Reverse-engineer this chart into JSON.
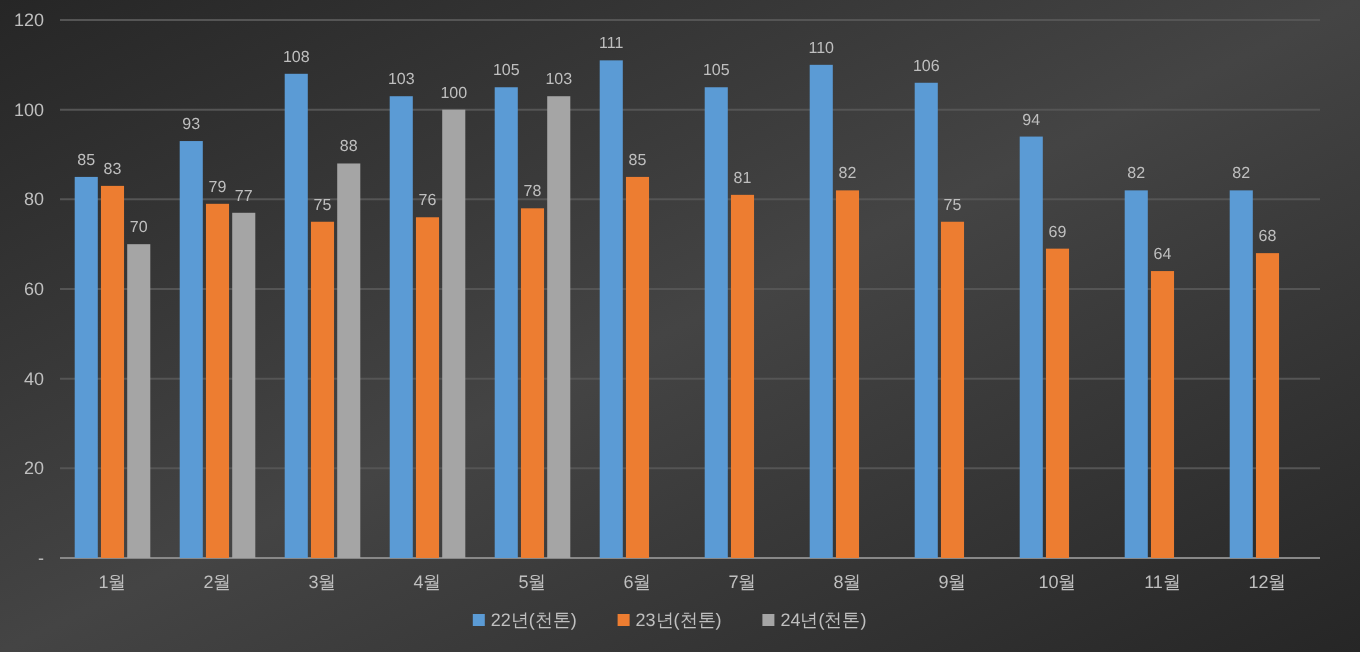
{
  "chart_data": {
    "type": "bar",
    "categories": [
      "1월",
      "2월",
      "3월",
      "4월",
      "5월",
      "6월",
      "7월",
      "8월",
      "9월",
      "10월",
      "11월",
      "12월"
    ],
    "series": [
      {
        "name": "22년(천톤)",
        "color": "#5b9bd5",
        "values": [
          85,
          93,
          108,
          103,
          105,
          111,
          105,
          110,
          106,
          94,
          82,
          82
        ]
      },
      {
        "name": "23년(천톤)",
        "color": "#ed7d31",
        "values": [
          83,
          79,
          75,
          76,
          78,
          85,
          81,
          82,
          75,
          69,
          64,
          68
        ]
      },
      {
        "name": "24년(천톤)",
        "color": "#a5a5a5",
        "values": [
          70,
          77,
          88,
          100,
          103,
          null,
          null,
          null,
          null,
          null,
          null,
          null
        ]
      }
    ],
    "ylim": [
      0,
      120
    ],
    "yticks": [
      {
        "value": 0,
        "label": "-"
      },
      20,
      40,
      60,
      80,
      100,
      120
    ],
    "grid": "y",
    "legend": "bottom",
    "data_labels": true
  }
}
